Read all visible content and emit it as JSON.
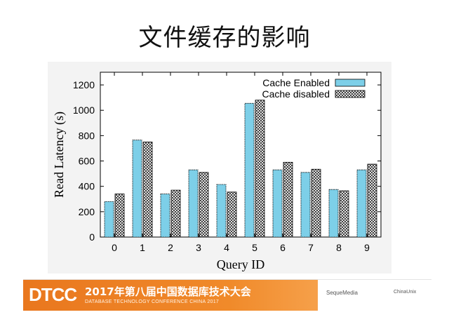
{
  "slide": {
    "title": "文件缓存的影响"
  },
  "chart_data": {
    "type": "bar",
    "categories": [
      "0",
      "1",
      "2",
      "3",
      "4",
      "5",
      "6",
      "7",
      "8",
      "9"
    ],
    "series": [
      {
        "name": "Cache Enabled",
        "values": [
          280,
          765,
          340,
          530,
          415,
          1055,
          530,
          510,
          375,
          530
        ],
        "color": "#7dcfe8"
      },
      {
        "name": "Cache disabled",
        "values": [
          340,
          750,
          370,
          510,
          355,
          1080,
          590,
          535,
          365,
          575
        ],
        "color": "#ffffff",
        "pattern": "crosshatch"
      }
    ],
    "xlabel": "Query ID",
    "ylabel": "Read Latency (s)",
    "ylim": [
      0,
      1300
    ],
    "yticks": [
      0,
      200,
      400,
      600,
      800,
      1000,
      1200
    ],
    "legend_position": "top-right",
    "grid": false
  },
  "footer": {
    "logo": "DTCC",
    "conference": "2017年第八届中国数据库技术大会",
    "subtitle": "DATABASE TECHNOLOGY CONFERENCE CHINA 2017",
    "sponsors": [
      "SequeMedia",
      "ChinaUnix"
    ]
  }
}
